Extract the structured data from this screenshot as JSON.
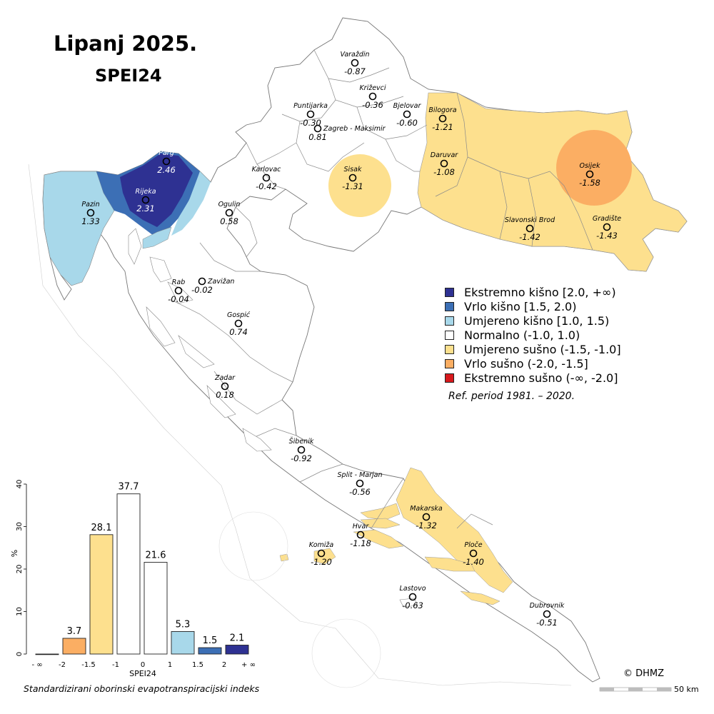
{
  "title": "Lipanj 2025.",
  "subtitle": "SPEI24",
  "colors": {
    "ext_wet": "#2e3192",
    "very_wet": "#3c6fb5",
    "mod_wet": "#a8d8ea",
    "normal": "#ffffff",
    "mod_dry": "#fde08e",
    "very_dry": "#fbae63",
    "ext_dry": "#d7191c"
  },
  "legend": [
    {
      "label": "Ekstremno kišno [2.0, +∞)",
      "color": "#2e3192"
    },
    {
      "label": "Vrlo kišno [1.5, 2.0)",
      "color": "#3c6fb5"
    },
    {
      "label": "Umjereno kišno [1.0, 1.5)",
      "color": "#a8d8ea"
    },
    {
      "label": "Normalno (-1.0, 1.0)",
      "color": "#ffffff"
    },
    {
      "label": "Umjereno sušno (-1.5, -1.0]",
      "color": "#fde08e"
    },
    {
      "label": "Vrlo sušno (-2.0, -1.5]",
      "color": "#fbae63"
    },
    {
      "label": "Ekstremno sušno (-∞, -2.0]",
      "color": "#d7191c"
    }
  ],
  "ref_period": "Ref. period 1981. – 2020.",
  "copyright": "© DHMZ",
  "scale_label": "50 km",
  "caption": "Standardizirani oborinski evapotranspiracijski indeks",
  "stations": [
    {
      "name": "Varaždin",
      "value": "-0.87"
    },
    {
      "name": "Križevci",
      "value": "-0.36"
    },
    {
      "name": "Puntijarka",
      "value": "-0.30"
    },
    {
      "name": "Bjelovar",
      "value": "-0.60"
    },
    {
      "name": "Bilogora",
      "value": "-1.21"
    },
    {
      "name": "Zagreb - Maksimir",
      "value": "0.81"
    },
    {
      "name": "Parg",
      "value": "2.46"
    },
    {
      "name": "Karlovac",
      "value": "-0.42"
    },
    {
      "name": "Sisak",
      "value": "-1.31"
    },
    {
      "name": "Daruvar",
      "value": "-1.08"
    },
    {
      "name": "Osijek",
      "value": "-1.58"
    },
    {
      "name": "Rijeka",
      "value": "2.31"
    },
    {
      "name": "Pazin",
      "value": "1.33"
    },
    {
      "name": "Ogulin",
      "value": "0.58"
    },
    {
      "name": "Slavonski Brod",
      "value": "-1.42"
    },
    {
      "name": "Gradište",
      "value": "-1.43"
    },
    {
      "name": "Zavižan",
      "value": "-0.02"
    },
    {
      "name": "Rab",
      "value": "-0.04"
    },
    {
      "name": "Gospić",
      "value": "0.74"
    },
    {
      "name": "Zadar",
      "value": "0.18"
    },
    {
      "name": "Šibenik",
      "value": "-0.92"
    },
    {
      "name": "Split - Marjan",
      "value": "-0.56"
    },
    {
      "name": "Makarska",
      "value": "-1.32"
    },
    {
      "name": "Hvar",
      "value": "-1.18"
    },
    {
      "name": "Komiža",
      "value": "-1.20"
    },
    {
      "name": "Ploče",
      "value": "-1.40"
    },
    {
      "name": "Lastovo",
      "value": "-0.63"
    },
    {
      "name": "Dubrovnik",
      "value": "-0.51"
    }
  ],
  "histogram": {
    "ylabel": "%",
    "xlabel": "SPEI24",
    "yticks": [
      "0",
      "10",
      "20",
      "30",
      "40"
    ],
    "ymax": 40,
    "xticks": [
      "- ∞",
      "-2",
      "-1.5",
      "-1",
      "0",
      "1",
      "1.5",
      "2",
      "+ ∞"
    ],
    "bars": [
      {
        "value": 0,
        "label": "",
        "color": "#d7191c"
      },
      {
        "value": 3.7,
        "label": "3.7",
        "color": "#fbae63"
      },
      {
        "value": 28.1,
        "label": "28.1",
        "color": "#fde08e"
      },
      {
        "value": 37.7,
        "label": "37.7",
        "color": "#ffffff"
      },
      {
        "value": 21.6,
        "label": "21.6",
        "color": "#ffffff"
      },
      {
        "value": 5.3,
        "label": "5.3",
        "color": "#a8d8ea"
      },
      {
        "value": 1.5,
        "label": "1.5",
        "color": "#3c6fb5"
      },
      {
        "value": 2.1,
        "label": "2.1",
        "color": "#2e3192"
      }
    ]
  }
}
